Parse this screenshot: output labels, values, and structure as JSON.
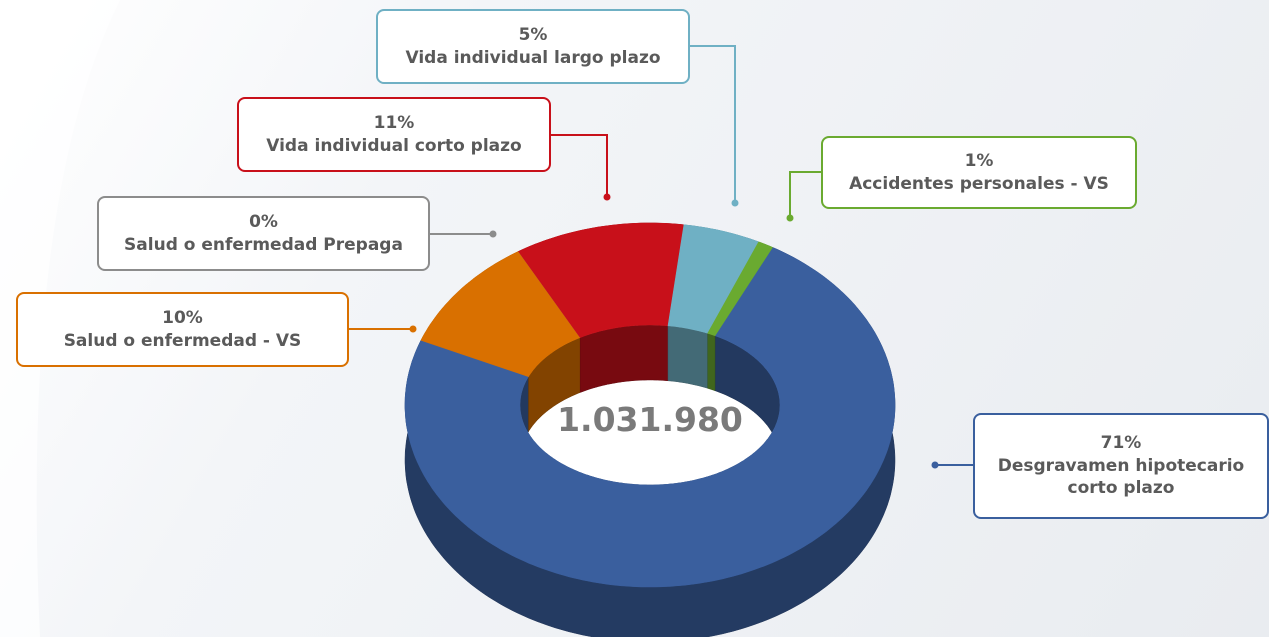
{
  "chart_data": {
    "type": "pie",
    "categories": [
      "Desgravamen hipotecario corto plazo",
      "Salud o enfermedad - VS",
      "Salud o enfermedad Prepaga",
      "Vida individual corto plazo",
      "Vida individual largo plazo",
      "Accidentes personales - VS"
    ],
    "values": [
      71,
      10,
      0,
      11,
      5,
      1
    ],
    "value_labels": [
      "71%",
      "10%",
      "0%",
      "11%",
      "5%",
      "1%"
    ],
    "colors": [
      "#3a5f9e",
      "#d97000",
      "#8c8c8c",
      "#c8101a",
      "#6fb0c4",
      "#6aaa30"
    ],
    "center_label": "1.031.980"
  }
}
